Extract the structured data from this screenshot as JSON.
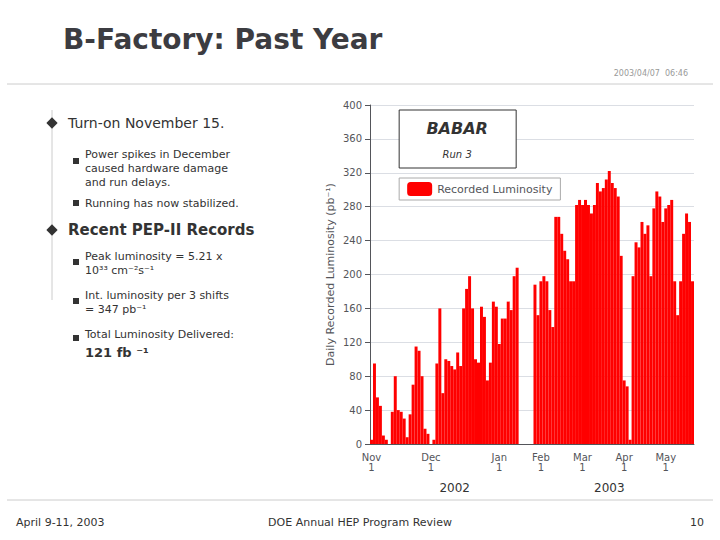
{
  "chart_data": {
    "type": "bar",
    "title": "B-Factory: Past Year",
    "ylabel": "Daily Recorded Luminosity (pb⁻¹)",
    "categories": [
      "Nov\n1",
      null,
      null,
      null,
      null,
      null,
      null,
      null,
      null,
      null,
      null,
      null,
      null,
      null,
      null,
      null,
      null,
      null,
      null,
      null,
      "Dec\n1",
      null,
      null,
      null,
      null,
      null,
      null,
      null,
      null,
      null,
      null,
      null,
      null,
      null,
      null,
      null,
      null,
      null,
      null,
      null,
      null,
      null,
      null,
      "Jan\n1",
      null,
      null,
      null,
      null,
      null,
      null,
      null,
      null,
      null,
      null,
      null,
      null,
      null,
      "Feb\n1",
      null,
      null,
      null,
      null,
      null,
      null,
      null,
      null,
      null,
      null,
      null,
      null,
      null,
      "Mar\n1",
      null,
      null,
      null,
      null,
      null,
      null,
      null,
      null,
      null,
      null,
      null,
      null,
      null,
      "Apr\n1",
      null,
      null,
      null,
      null,
      null,
      null,
      null,
      null,
      null,
      null,
      null,
      null,
      null,
      "May\n1",
      null,
      null,
      null,
      null,
      null,
      null,
      null,
      null,
      null
    ],
    "series": [
      {
        "name": "Recorded Luminosity",
        "color": "#FF0000",
        "values": [
          5,
          95,
          55,
          45,
          10,
          5,
          0,
          38,
          80,
          40,
          38,
          30,
          8,
          35,
          70,
          115,
          110,
          80,
          18,
          12,
          0,
          5,
          95,
          160,
          60,
          100,
          98,
          92,
          88,
          108,
          92,
          160,
          183,
          198,
          160,
          100,
          96,
          162,
          150,
          75,
          96,
          168,
          162,
          118,
          148,
          148,
          168,
          158,
          198,
          208,
          0,
          0,
          0,
          0,
          0,
          188,
          152,
          192,
          198,
          192,
          158,
          138,
          268,
          268,
          248,
          228,
          218,
          192,
          192,
          282,
          288,
          282,
          288,
          282,
          272,
          282,
          308,
          298,
          302,
          312,
          322,
          308,
          302,
          292,
          222,
          75,
          68,
          5,
          198,
          238,
          232,
          262,
          248,
          258,
          198,
          278,
          298,
          292,
          262,
          278,
          282,
          288,
          192,
          152,
          192,
          248,
          272,
          262,
          192
        ]
      }
    ],
    "ylim": [
      0,
      400
    ],
    "yticks": [
      0,
      40,
      80,
      120,
      160,
      200,
      240,
      280,
      320,
      360,
      400
    ],
    "grid": true,
    "legend": "upper left",
    "annotations": [
      {
        "text": "2003/04/07  06:46"
      },
      {
        "text": "Turn-on November 15."
      },
      {
        "text": "Power spikes in December\ncaused hardware damage\nand run delays."
      },
      {
        "text": "Running has now stabilized."
      },
      {
        "text": "Recent PEP-II Records"
      },
      {
        "text": "Peak luminosity = 5.21 x\n10³³ cm⁻²s⁻¹"
      },
      {
        "text": "Int. luminosity per 3 shifts\n= 347 pb⁻¹"
      },
      {
        "text": "Total Luminosity Delivered:"
      },
      {
        "text": "121 fb ⁻¹"
      },
      {
        "text": "April 9-11, 2003"
      },
      {
        "text": "DOE Annual HEP Program Review"
      },
      {
        "text": "10"
      },
      {
        "text": "BABAR"
      },
      {
        "text": "Run 3"
      },
      {
        "text": "2002",
        "x": 28
      },
      {
        "text": "2003",
        "x": 80
      }
    ]
  }
}
